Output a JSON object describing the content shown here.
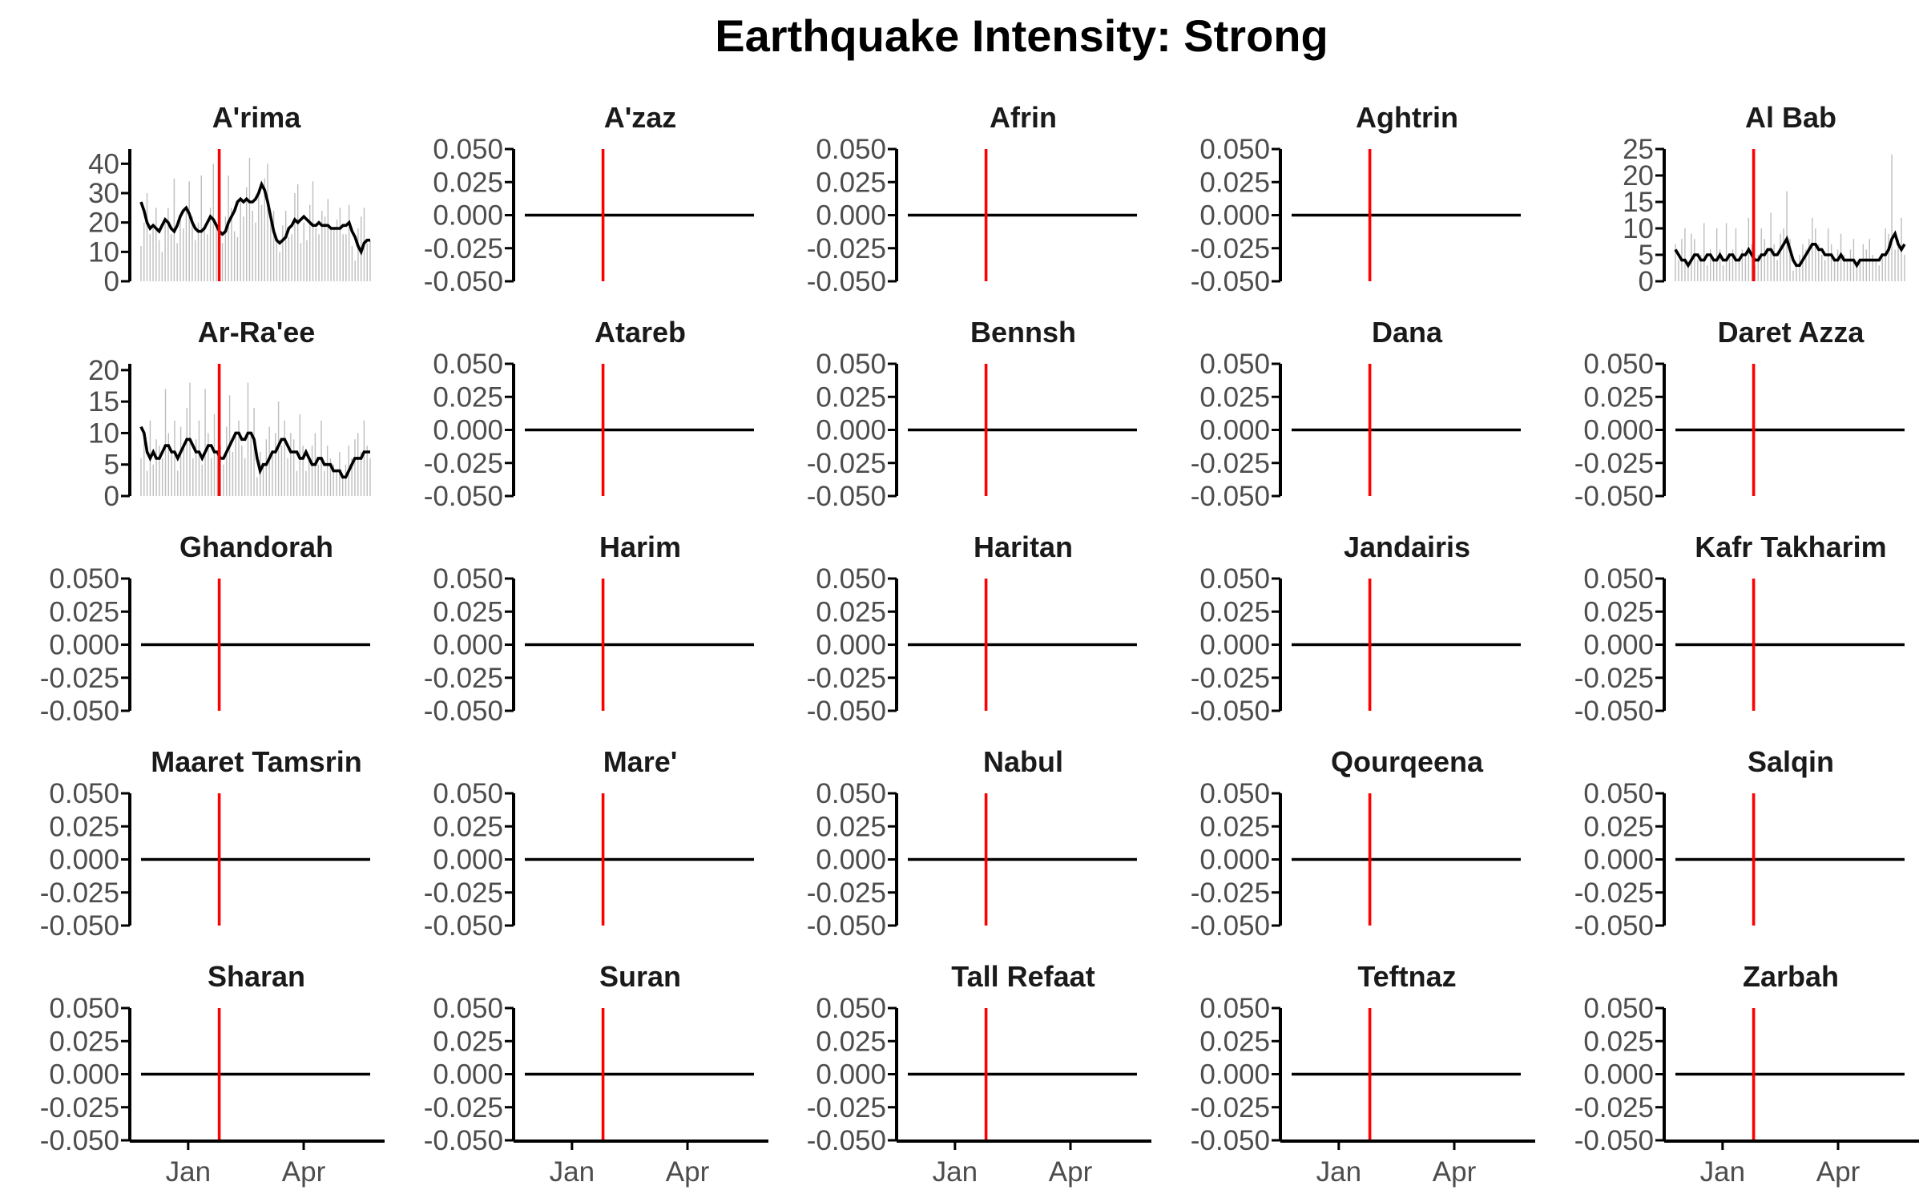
{
  "chart_data": {
    "type": "line",
    "title": "Earthquake Intensity: Strong",
    "layout": "5x5 facet grid",
    "xlabel": "",
    "ylabel": "",
    "x_tick_labels": [
      "Jan",
      "Apr"
    ],
    "event_line_color": "#ff0000",
    "smoothed_line_color": "#000000",
    "daily_bar_color": "#bdbdbd",
    "zero_panel_ylim": [
      -0.05,
      0.05
    ],
    "zero_panel_yticks": [
      "0.050",
      "0.025",
      "0.000",
      "-0.025",
      "-0.050"
    ],
    "panels": [
      {
        "name": "A'rima",
        "ylim": [
          0,
          45
        ],
        "yticks": [
          "40",
          "30",
          "20",
          "10",
          "0"
        ],
        "smoothed": [
          27,
          24,
          20,
          18,
          19,
          18,
          17,
          19,
          21,
          20,
          18,
          17,
          19,
          22,
          24,
          25,
          23,
          20,
          18,
          17,
          17,
          18,
          20,
          22,
          21,
          19,
          17,
          16,
          17,
          20,
          22,
          24,
          27,
          28,
          27,
          28,
          27,
          27,
          28,
          30,
          33,
          31,
          27,
          22,
          17,
          14,
          13,
          14,
          15,
          18,
          19,
          21,
          20,
          21,
          22,
          21,
          20,
          19,
          19,
          20,
          19,
          19,
          19,
          18,
          18,
          18,
          18,
          19,
          19,
          20,
          17,
          15,
          12,
          10,
          13,
          14,
          14
        ],
        "bars": [
          12,
          20,
          30,
          16,
          18,
          25,
          14,
          10,
          20,
          25,
          16,
          35,
          13,
          21,
          18,
          25,
          34,
          22,
          14,
          20,
          36,
          18,
          16,
          25,
          40,
          20,
          16,
          13,
          22,
          36,
          25,
          17,
          15,
          28,
          22,
          32,
          42,
          24,
          20,
          30,
          26,
          35,
          40,
          20,
          24,
          14,
          10,
          19,
          24,
          15,
          16,
          30,
          33,
          13,
          20,
          14,
          26,
          34,
          18,
          16,
          24,
          22,
          28,
          18,
          18,
          21,
          25,
          16,
          16,
          26,
          12,
          7,
          18,
          22,
          25,
          13,
          14
        ]
      },
      {
        "name": "A'zaz"
      },
      {
        "name": "Afrin"
      },
      {
        "name": "Aghtrin"
      },
      {
        "name": "Al Bab",
        "ylim": [
          0,
          25
        ],
        "yticks": [
          "25",
          "20",
          "15",
          "10",
          "5",
          "0"
        ],
        "smoothed": [
          6,
          5,
          4,
          4,
          3,
          4,
          5,
          5,
          4,
          4,
          5,
          5,
          4,
          4,
          5,
          4,
          4,
          5,
          5,
          4,
          4,
          5,
          5,
          6,
          5,
          4,
          4,
          5,
          5,
          6,
          6,
          5,
          5,
          6,
          7,
          8,
          6,
          4,
          3,
          3,
          4,
          5,
          6,
          7,
          7,
          6,
          6,
          5,
          5,
          5,
          4,
          4,
          5,
          4,
          4,
          4,
          4,
          3,
          4,
          4,
          4,
          4,
          4,
          4,
          4,
          5,
          5,
          6,
          8,
          9,
          7,
          6,
          7
        ],
        "bars": [
          7,
          4,
          8,
          10,
          3,
          9,
          8,
          4,
          5,
          11,
          3,
          6,
          4,
          10,
          6,
          3,
          11,
          5,
          6,
          10,
          4,
          6,
          5,
          12,
          7,
          3,
          5,
          10,
          8,
          6,
          13,
          7,
          4,
          9,
          10,
          17,
          8,
          2,
          3,
          5,
          7,
          6,
          8,
          12,
          10,
          7,
          5,
          4,
          10,
          7,
          4,
          6,
          9,
          5,
          4,
          6,
          8,
          3,
          4,
          7,
          6,
          8,
          5,
          4,
          3,
          5,
          10,
          9,
          24,
          6,
          8,
          12,
          5
        ]
      },
      {
        "name": "Ar-Ra'ee",
        "ylim": [
          0,
          21
        ],
        "yticks": [
          "20",
          "15",
          "10",
          "5",
          "0"
        ],
        "smoothed": [
          11,
          10,
          7,
          6,
          7,
          6,
          6,
          7,
          8,
          8,
          7,
          7,
          6,
          7,
          8,
          9,
          9,
          8,
          7,
          7,
          6,
          7,
          8,
          8,
          7,
          7,
          6,
          6,
          7,
          8,
          9,
          10,
          10,
          9,
          9,
          10,
          10,
          9,
          6,
          4,
          5,
          5,
          6,
          7,
          7,
          8,
          9,
          9,
          8,
          7,
          7,
          7,
          6,
          6,
          7,
          6,
          5,
          5,
          6,
          6,
          5,
          5,
          5,
          4,
          4,
          4,
          3,
          3,
          4,
          5,
          6,
          6,
          6,
          7,
          7,
          7
        ],
        "bars": [
          6,
          10,
          4,
          12,
          5,
          9,
          8,
          6,
          17,
          10,
          7,
          12,
          4,
          11,
          8,
          14,
          18,
          6,
          9,
          12,
          5,
          17,
          10,
          6,
          13,
          7,
          8,
          5,
          11,
          16,
          7,
          10,
          12,
          8,
          6,
          18,
          10,
          14,
          3,
          7,
          5,
          9,
          11,
          7,
          10,
          15,
          8,
          12,
          6,
          10,
          9,
          4,
          13,
          8,
          4,
          6,
          8,
          10,
          5,
          12,
          4,
          8,
          6,
          5,
          4,
          7,
          3,
          5,
          8,
          6,
          9,
          10,
          7,
          12,
          8,
          6
        ]
      },
      {
        "name": "Atareb"
      },
      {
        "name": "Bennsh"
      },
      {
        "name": "Dana"
      },
      {
        "name": "Daret Azza"
      },
      {
        "name": "Ghandorah"
      },
      {
        "name": "Harim"
      },
      {
        "name": "Haritan"
      },
      {
        "name": "Jandairis"
      },
      {
        "name": "Kafr Takharim"
      },
      {
        "name": "Maaret Tamsrin"
      },
      {
        "name": "Mare'"
      },
      {
        "name": "Nabul"
      },
      {
        "name": "Qourqeena"
      },
      {
        "name": "Salqin"
      },
      {
        "name": "Sharan"
      },
      {
        "name": "Suran"
      },
      {
        "name": "Tall Refaat"
      },
      {
        "name": "Teftnaz"
      },
      {
        "name": "Zarbah"
      }
    ]
  }
}
